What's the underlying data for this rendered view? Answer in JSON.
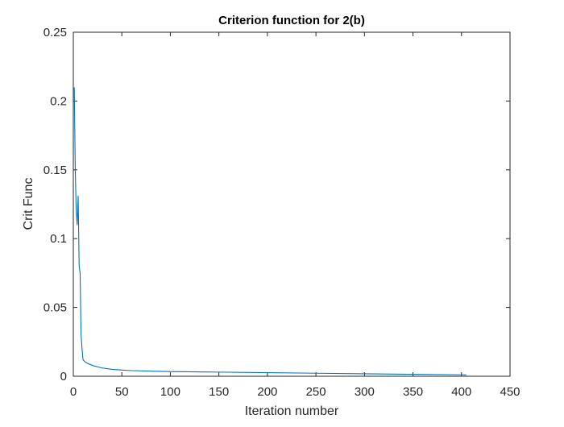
{
  "chart_data": {
    "type": "line",
    "title": "Criterion function for 2(b)",
    "xlabel": "Iteration number",
    "ylabel": "Crit Func",
    "xlim": [
      0,
      450
    ],
    "ylim": [
      0,
      0.25
    ],
    "xticks": [
      0,
      50,
      100,
      150,
      200,
      250,
      300,
      350,
      400,
      450
    ],
    "yticks": [
      0,
      0.05,
      0.1,
      0.15,
      0.2,
      0.25
    ],
    "xtick_labels": [
      "0",
      "50",
      "100",
      "150",
      "200",
      "250",
      "300",
      "350",
      "400",
      "450"
    ],
    "ytick_labels": [
      "0",
      "0.05",
      "0.1",
      "0.15",
      "0.2",
      "0.25"
    ],
    "grid": false,
    "box": true,
    "series": [
      {
        "color": "#0072BD",
        "x": [
          1,
          2,
          3,
          4,
          5,
          6,
          7,
          8,
          9,
          10,
          12,
          15,
          20,
          25,
          30,
          40,
          50,
          60,
          80,
          100,
          150,
          200,
          250,
          300,
          350,
          400,
          405
        ],
        "y": [
          0.21,
          0.15,
          0.12,
          0.11,
          0.131,
          0.08,
          0.075,
          0.03,
          0.02,
          0.012,
          0.0105,
          0.0092,
          0.0078,
          0.0068,
          0.006,
          0.005,
          0.0045,
          0.0041,
          0.0037,
          0.0034,
          0.003,
          0.0026,
          0.0022,
          0.0018,
          0.0014,
          0.0011,
          0.001
        ]
      }
    ]
  }
}
